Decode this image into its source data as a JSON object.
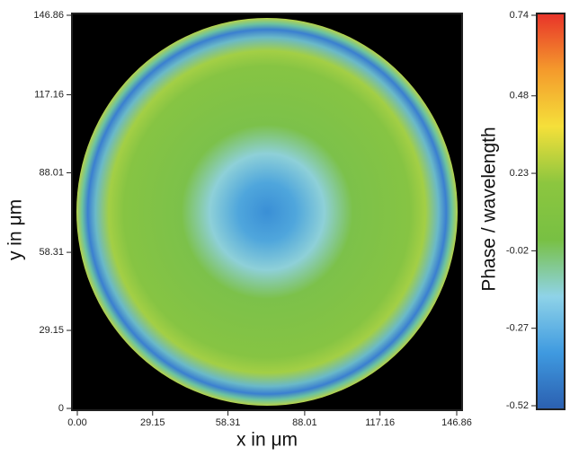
{
  "chart_data": {
    "type": "heatmap",
    "xlabel": "x in μm",
    "ylabel": "y in μm",
    "colorbar_label": "Phase / wavelength",
    "xlim": [
      0,
      146.86
    ],
    "ylim": [
      0,
      146.86
    ],
    "xticks": [
      {
        "value": 0,
        "label": "0.00"
      },
      29.15,
      58.31,
      88.01,
      117.16,
      146.86
    ],
    "yticks": [
      0,
      29.15,
      58.31,
      88.01,
      117.16,
      146.86
    ],
    "clim": [
      -0.52,
      0.74
    ],
    "cticks": [
      -0.52,
      -0.27,
      -0.02,
      0.23,
      0.48,
      0.74
    ],
    "colormap": [
      "#2b5fb0",
      "#3f9ae0",
      "#8fd3e8",
      "#78c043",
      "#8cc63f",
      "#f5e03a",
      "#f49a2c",
      "#e8332a"
    ]
  }
}
